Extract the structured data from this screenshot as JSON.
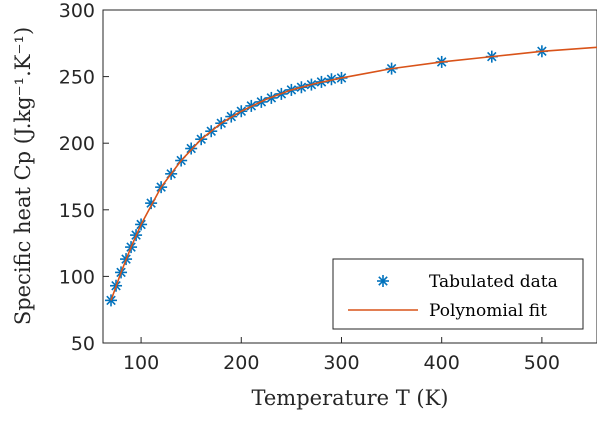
{
  "chart_data": {
    "type": "line",
    "xlabel": "Temperature T (K)",
    "ylabel": "Specific heat Cp (J.kg⁻¹.K⁻¹)",
    "xlim": [
      62,
      555
    ],
    "ylim": [
      50,
      300
    ],
    "xticks": [
      100,
      200,
      300,
      400,
      500
    ],
    "yticks": [
      50,
      100,
      150,
      200,
      250,
      300
    ],
    "legend": "lower right",
    "series": [
      {
        "name": "Tabulated data",
        "style": "marker",
        "color": "#0072bd",
        "x": [
          70,
          75,
          80,
          85,
          90,
          95,
          100,
          110,
          120,
          130,
          140,
          150,
          160,
          170,
          180,
          190,
          200,
          210,
          220,
          230,
          240,
          250,
          260,
          270,
          280,
          290,
          300,
          350,
          400,
          450,
          500
        ],
        "values": [
          82,
          93,
          103,
          113,
          122,
          131,
          139,
          155,
          167,
          177,
          187,
          196,
          203,
          209,
          215,
          220,
          224,
          228,
          231,
          234,
          237,
          240,
          242,
          244,
          246,
          248,
          249,
          256,
          261,
          265,
          269
        ]
      },
      {
        "name": "Polynomial fit",
        "style": "line",
        "color": "#d95319",
        "x": [
          70,
          80,
          90,
          100,
          120,
          140,
          160,
          180,
          200,
          225,
          250,
          275,
          300,
          350,
          400,
          450,
          500,
          555
        ],
        "values": [
          82,
          103,
          122,
          139,
          167,
          187,
          203,
          215,
          224,
          233,
          240,
          245,
          249,
          256,
          261,
          265,
          269,
          272
        ]
      }
    ]
  }
}
